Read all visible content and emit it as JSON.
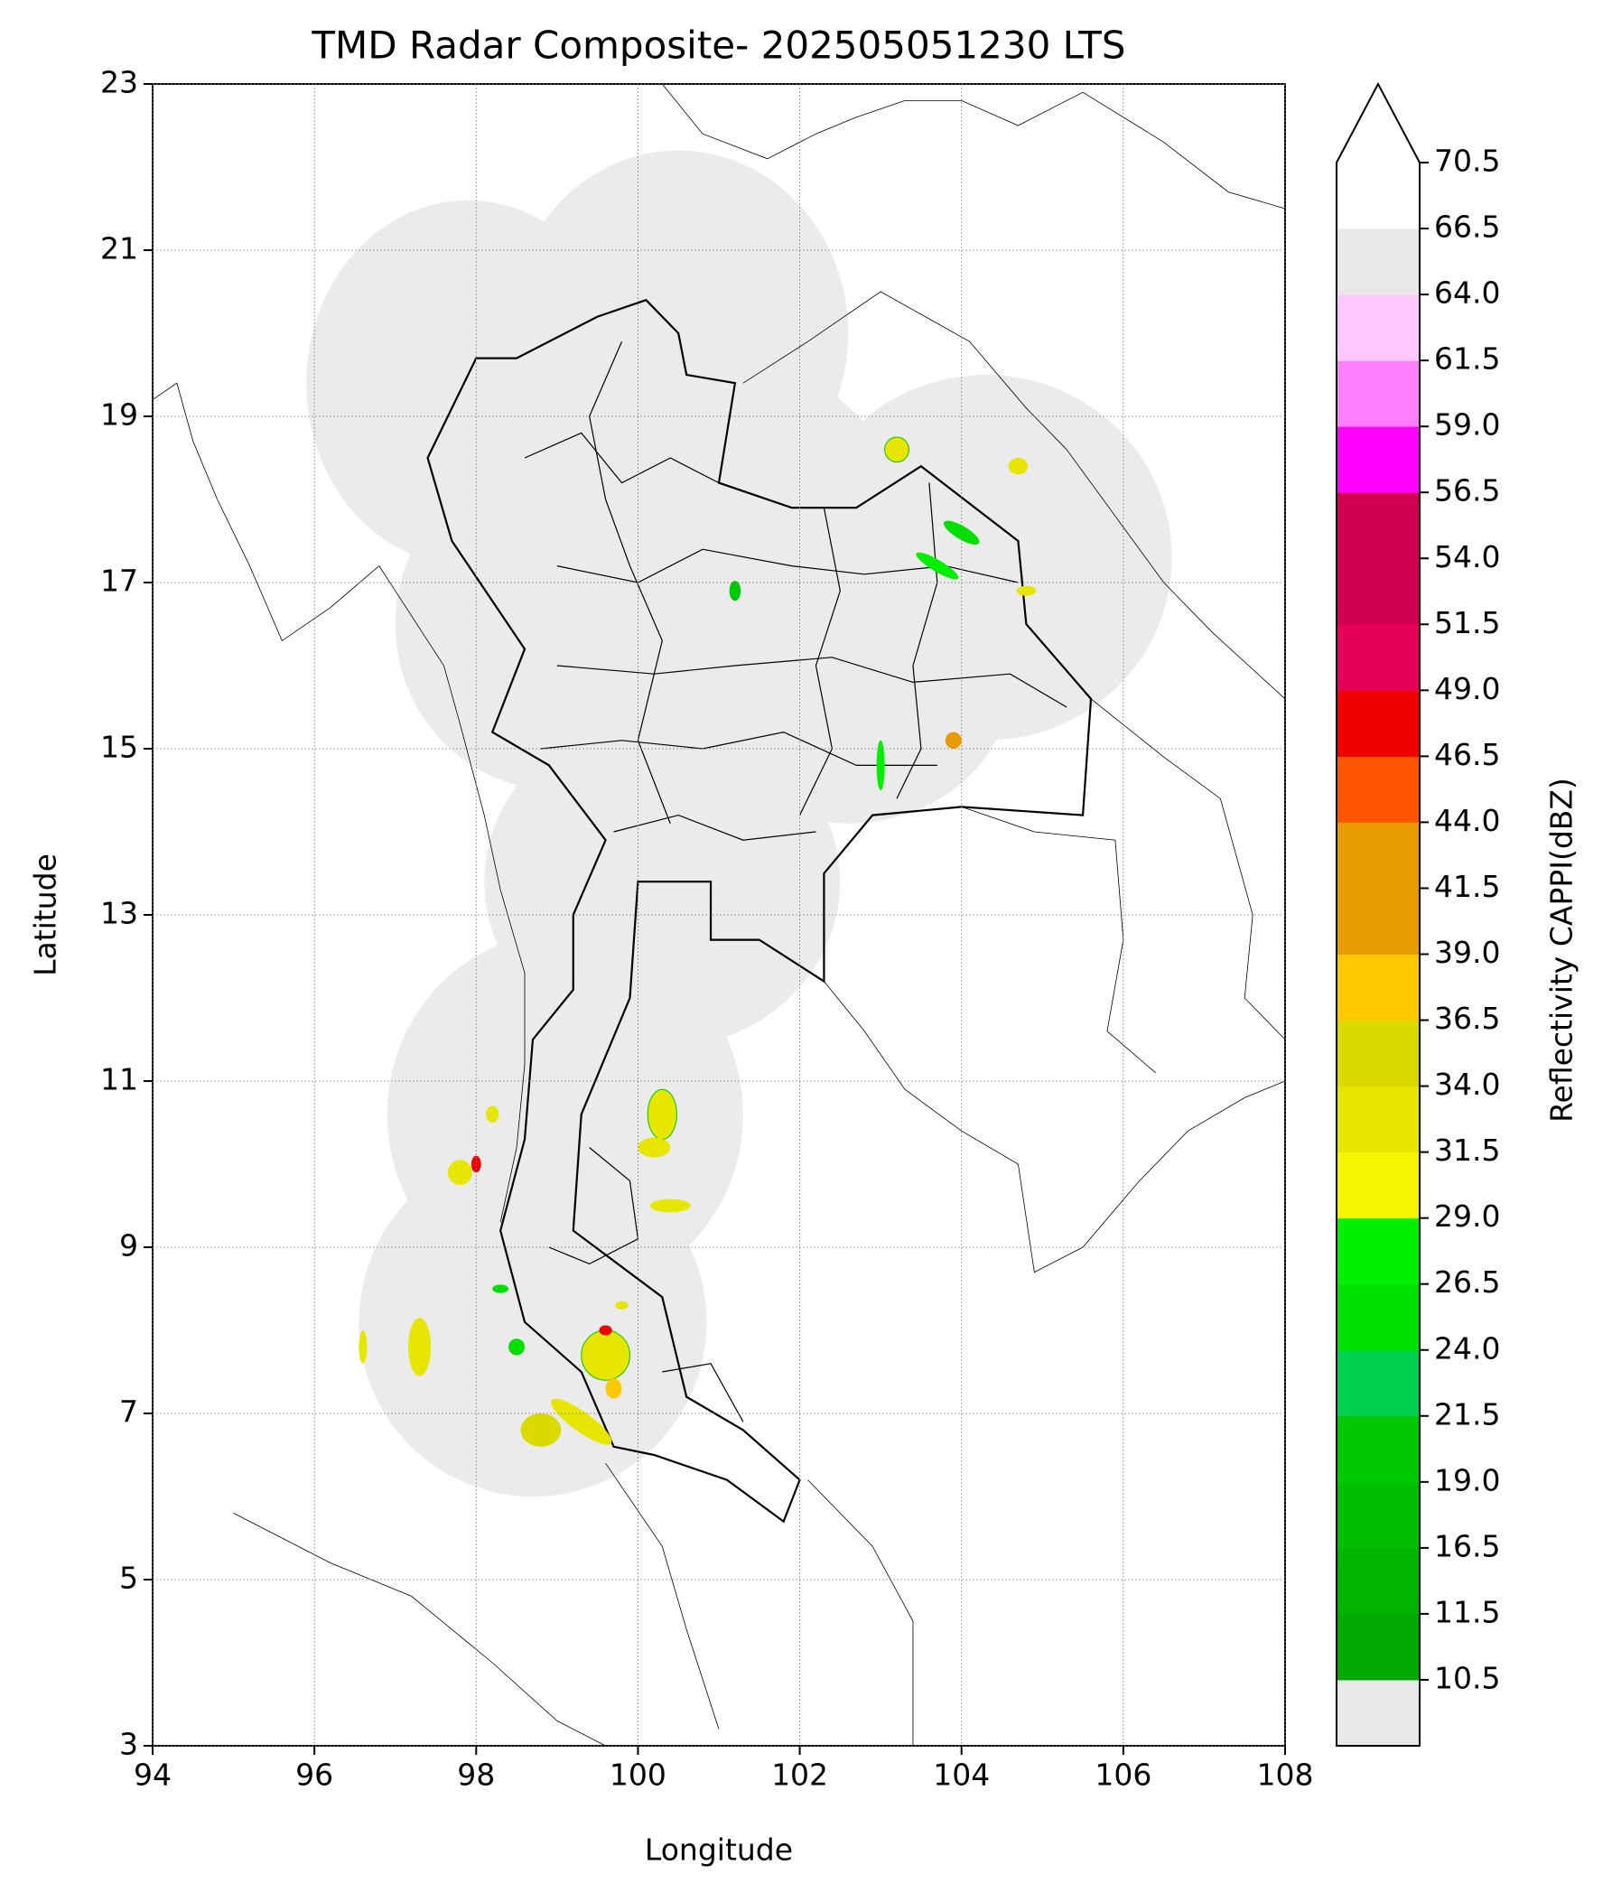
{
  "chart_data": {
    "type": "map",
    "title": "TMD Radar Composite- 202505051230 LTS",
    "xlabel": "Longitude",
    "ylabel": "Latitude",
    "xlim": [
      94,
      108
    ],
    "ylim": [
      3,
      23
    ],
    "xticks": [
      94,
      96,
      98,
      100,
      102,
      104,
      106,
      108
    ],
    "yticks": [
      3,
      5,
      7,
      9,
      11,
      13,
      15,
      17,
      19,
      21,
      23
    ],
    "grid": true,
    "colorbar": {
      "label": "Reflectivity CAPPI(dBZ)",
      "levels": [
        10.5,
        11.5,
        16.5,
        19.0,
        21.5,
        24.0,
        26.5,
        29.0,
        31.5,
        34.0,
        36.5,
        39.0,
        41.5,
        44.0,
        46.5,
        49.0,
        51.5,
        54.0,
        56.5,
        59.0,
        61.5,
        64.0,
        66.5,
        70.5
      ],
      "ticks": [
        {
          "value": 10.5,
          "label": "10.5"
        },
        {
          "value": 11.5,
          "label": "11.5"
        },
        {
          "value": 16.5,
          "label": "16.5"
        },
        {
          "value": 19.0,
          "label": "19.0"
        },
        {
          "value": 21.5,
          "label": "21.5"
        },
        {
          "value": 24.0,
          "label": "24.0"
        },
        {
          "value": 26.5,
          "label": "26.5"
        },
        {
          "value": 29.0,
          "label": "29.0"
        },
        {
          "value": 31.5,
          "label": "31.5"
        },
        {
          "value": 34.0,
          "label": "34.0"
        },
        {
          "value": 36.5,
          "label": "36.5"
        },
        {
          "value": 39.0,
          "label": "39.0"
        },
        {
          "value": 41.5,
          "label": "41.5"
        },
        {
          "value": 44.0,
          "label": "44.0"
        },
        {
          "value": 46.5,
          "label": "46.5"
        },
        {
          "value": 49.0,
          "label": "49.0"
        },
        {
          "value": 51.5,
          "label": "51.5"
        },
        {
          "value": 54.0,
          "label": "54.0"
        },
        {
          "value": 56.5,
          "label": "56.5"
        },
        {
          "value": 59.0,
          "label": "59.0"
        },
        {
          "value": 61.5,
          "label": "61.5"
        },
        {
          "value": 64.0,
          "label": "64.0"
        },
        {
          "value": 66.5,
          "label": "66.5"
        },
        {
          "value": 70.5,
          "label": "70.5"
        }
      ],
      "colors": [
        "#00aa00",
        "#00b400",
        "#00be00",
        "#00c800",
        "#00d050",
        "#00e000",
        "#00f000",
        "#f5f500",
        "#e6e600",
        "#dada00",
        "#ffc800",
        "#e89b00",
        "#e89b00",
        "#ff5500",
        "#f00000",
        "#e6005a",
        "#d20050",
        "#d20050",
        "#ff00ff",
        "#ff80ff",
        "#ffc8ff",
        "#e8e8e8",
        "#ffffff"
      ],
      "under_color": "#e8e8e8",
      "over_color": "#ffffff"
    }
  }
}
